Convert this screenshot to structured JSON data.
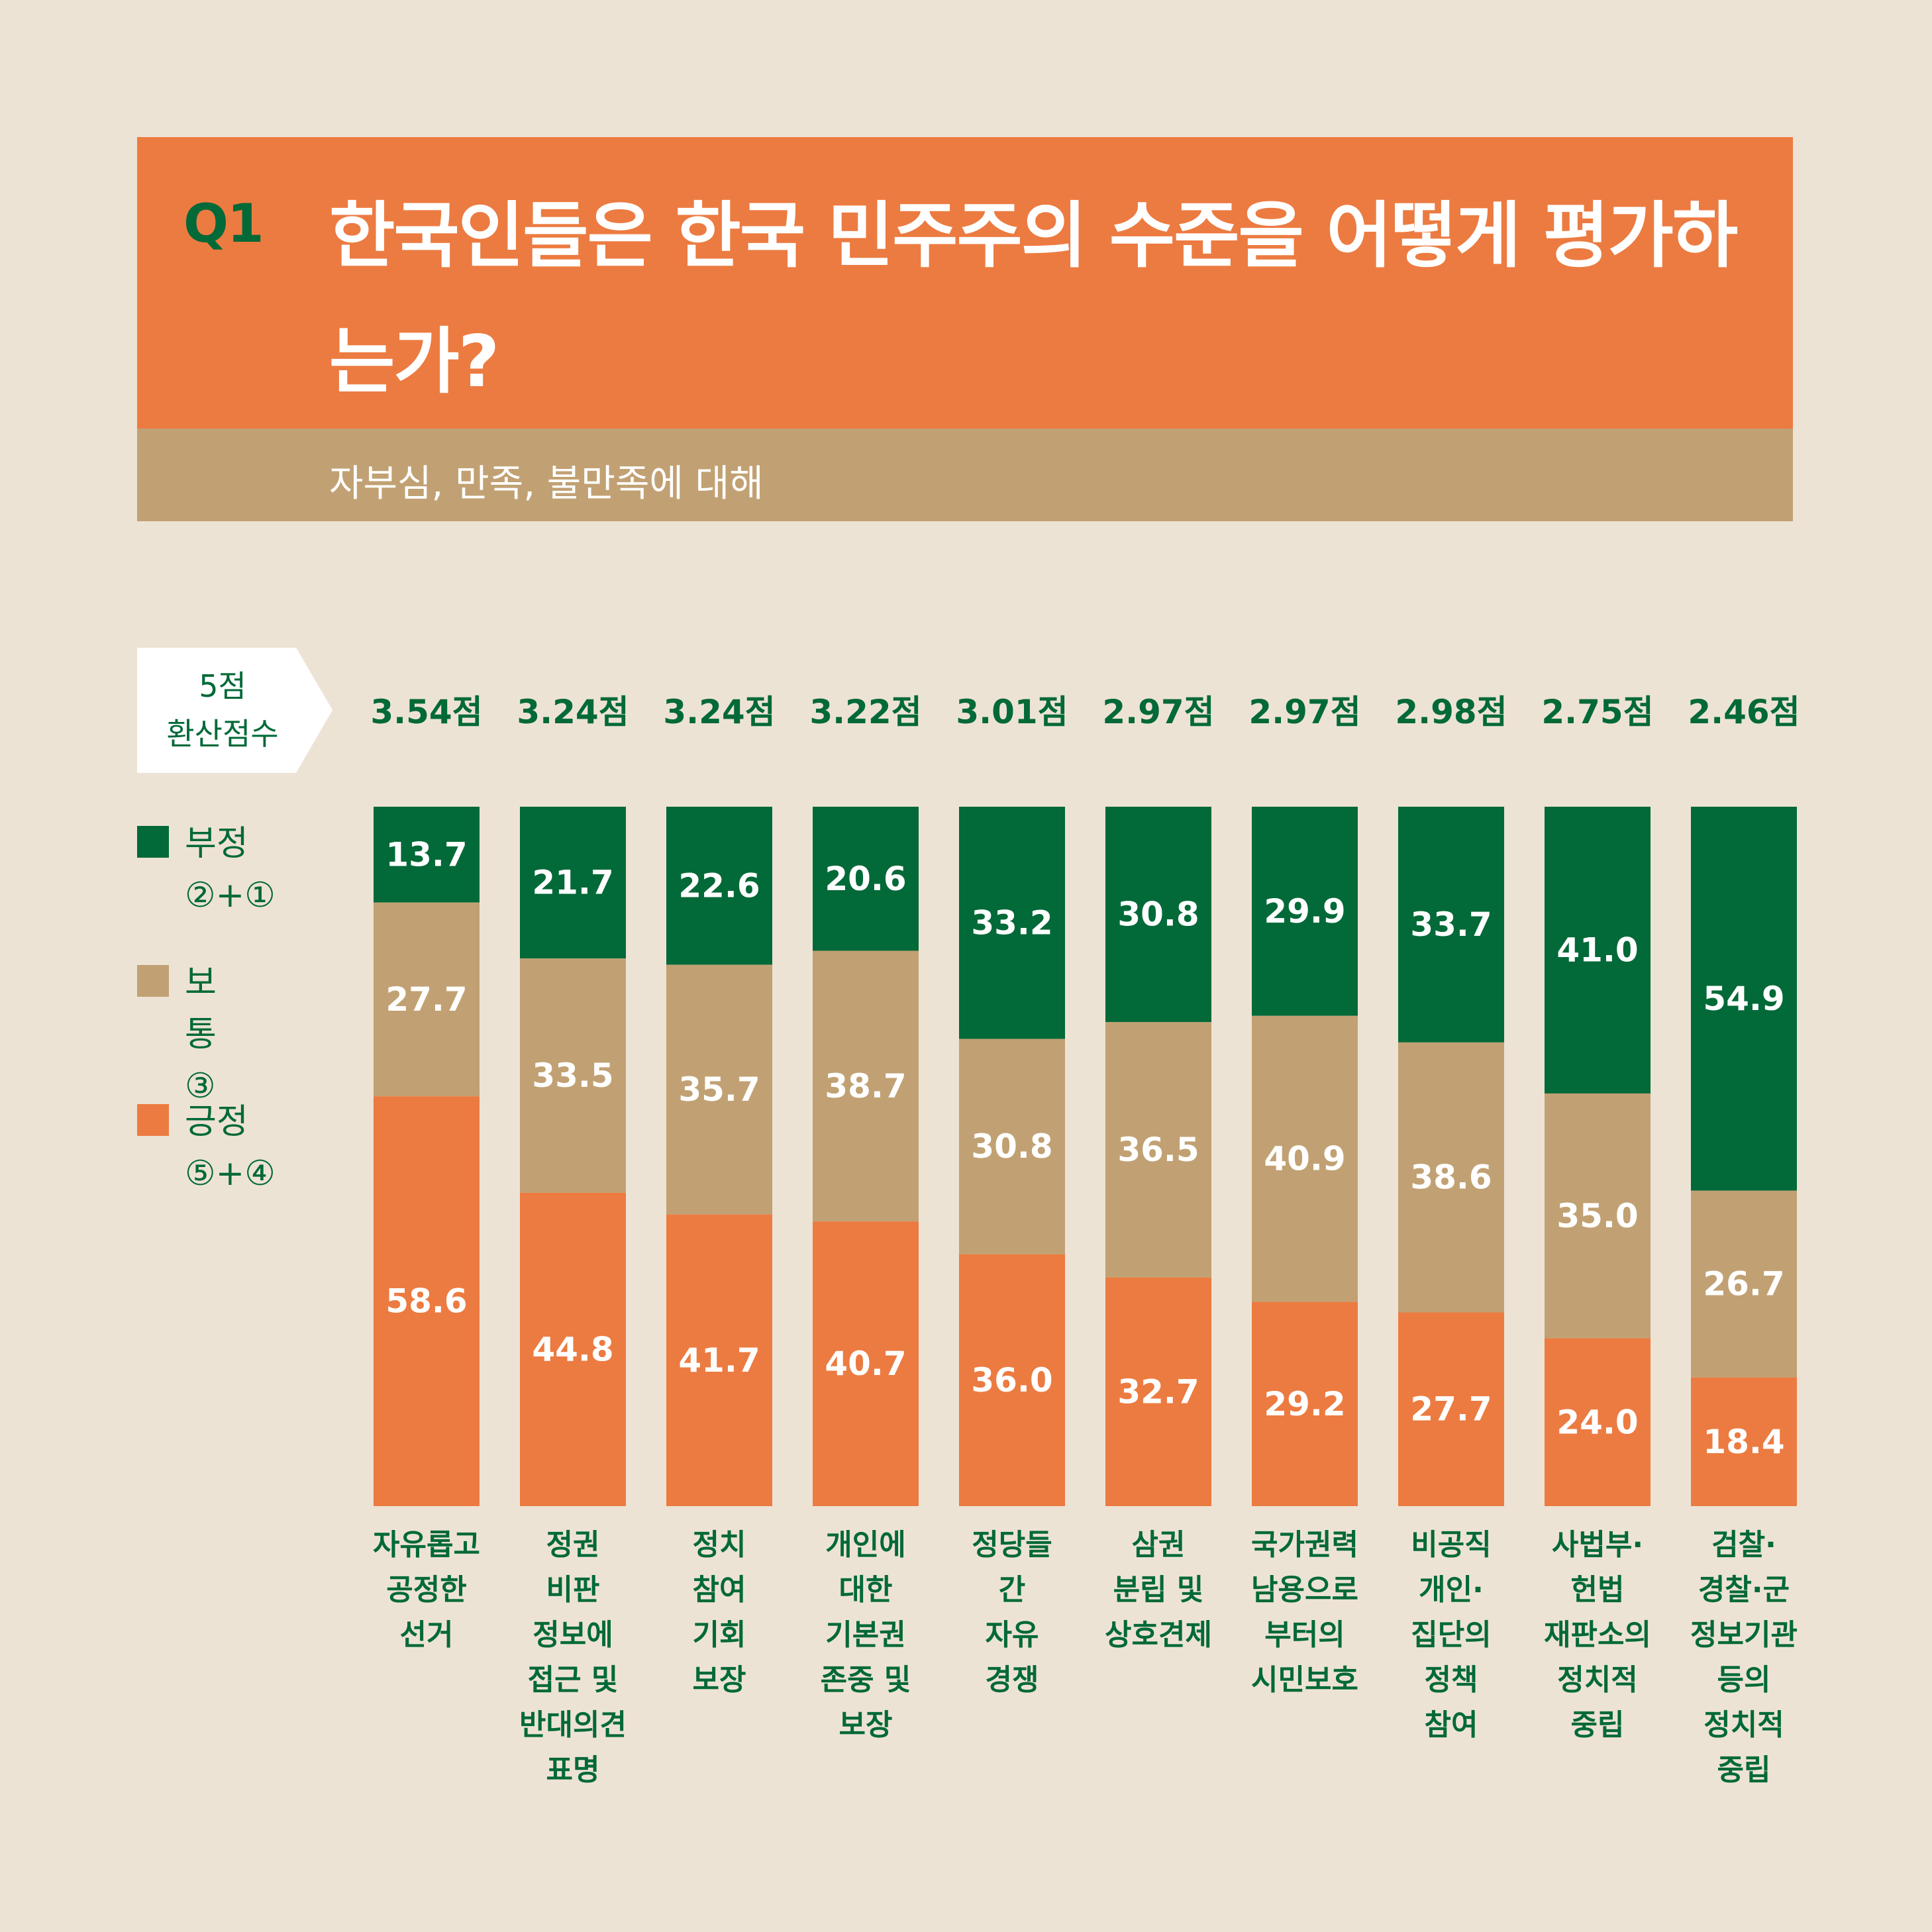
{
  "header": {
    "q_label": "Q1",
    "title": "한국인들은 한국 민주주의 수준을 어떻게 평가하는가?",
    "subtitle": "자부심, 만족, 불만족에 대해"
  },
  "score_tag": "5점\n환산점수",
  "legend": [
    {
      "label": "부정\n②+①",
      "color": "#026938"
    },
    {
      "label": "보통\n③",
      "color": "#c1a173"
    },
    {
      "label": "긍정\n⑤+④",
      "color": "#ec7b41"
    }
  ],
  "chart_data": {
    "type": "bar",
    "stacked": true,
    "orientation": "vertical",
    "categories": [
      "자유롭고\n공정한\n선거",
      "정권\n비판\n정보에\n접근 및\n반대의견\n표명",
      "정치\n참여\n기회\n보장",
      "개인에\n대한\n기본권\n존중 및\n보장",
      "정당들\n간\n자유\n경쟁",
      "삼권\n분립 및\n상호견제",
      "국가권력\n남용으로\n부터의\n시민보호",
      "비공직\n개인·\n집단의\n정책\n참여",
      "사법부·\n헌법\n재판소의\n정치적\n중립",
      "검찰·\n경찰·군\n정보기관\n등의\n정치적\n중립"
    ],
    "scores": [
      "3.54점",
      "3.24점",
      "3.24점",
      "3.22점",
      "3.01점",
      "2.97점",
      "2.97점",
      "2.98점",
      "2.75점",
      "2.46점"
    ],
    "series": [
      {
        "name": "부정",
        "color": "#026938",
        "values": [
          13.7,
          21.7,
          22.6,
          20.6,
          33.2,
          30.8,
          29.9,
          33.7,
          41.0,
          54.9
        ]
      },
      {
        "name": "보통",
        "color": "#c1a173",
        "values": [
          27.7,
          33.5,
          35.7,
          38.7,
          30.8,
          36.5,
          40.9,
          38.6,
          35.0,
          26.7
        ]
      },
      {
        "name": "긍정",
        "color": "#ec7b41",
        "values": [
          58.6,
          44.8,
          41.7,
          40.7,
          36.0,
          32.7,
          29.2,
          27.7,
          24.0,
          18.4
        ]
      }
    ],
    "ylim": [
      0,
      100
    ],
    "grid": false,
    "legend_position": "left"
  }
}
